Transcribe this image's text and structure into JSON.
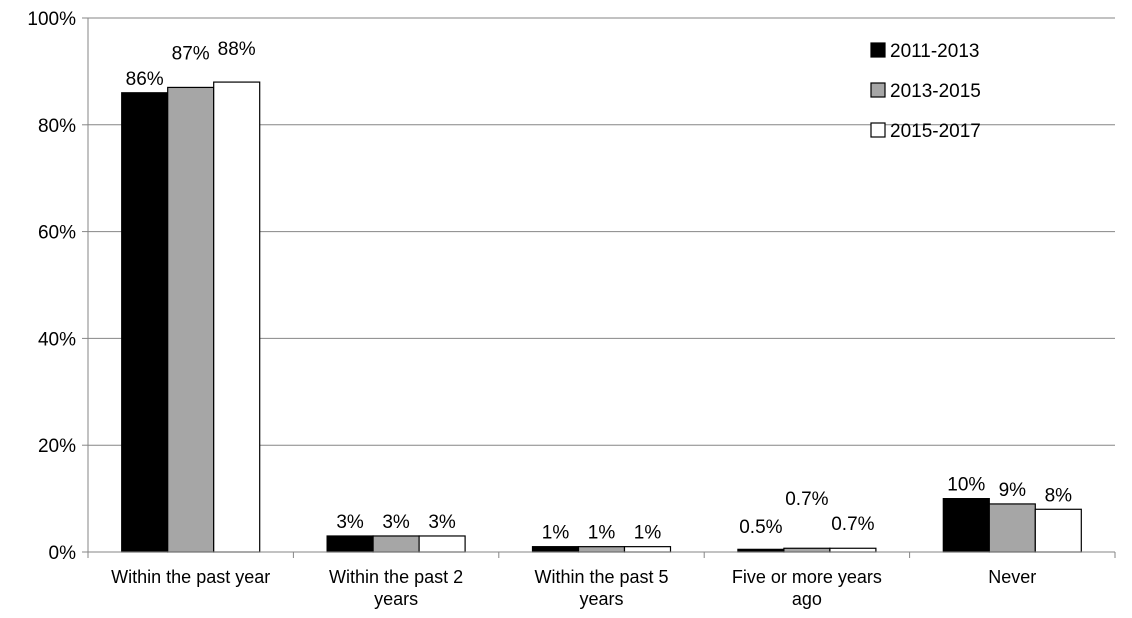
{
  "chart_data": {
    "type": "bar",
    "categories": [
      "Within the past year",
      "Within the past 2 years",
      "Within the past 5 years",
      "Five or more years ago",
      "Never"
    ],
    "category_label_lines": [
      [
        "Within the past year"
      ],
      [
        "Within the past 2",
        "years"
      ],
      [
        "Within the past 5",
        "years"
      ],
      [
        "Five or more years",
        "ago"
      ],
      [
        "Never"
      ]
    ],
    "series": [
      {
        "name": "2011-2013",
        "color": "#000000",
        "values": [
          86,
          3,
          1,
          0.5,
          10
        ],
        "labels": [
          "86%",
          "3%",
          "1%",
          "0.5%",
          "10%"
        ]
      },
      {
        "name": "2013-2015",
        "color": "#a6a6a6",
        "values": [
          87,
          3,
          1,
          0.7,
          9
        ],
        "labels": [
          "87%",
          "3%",
          "1%",
          "0.7%",
          "9%"
        ]
      },
      {
        "name": "2015-2017",
        "color": "#ffffff",
        "values": [
          88,
          3,
          1,
          0.7,
          8
        ],
        "labels": [
          "88%",
          "3%",
          "1%",
          "0.7%",
          "8%"
        ]
      }
    ],
    "ylim": [
      0,
      100
    ],
    "yticks": [
      0,
      20,
      40,
      60,
      80,
      100
    ],
    "ytick_labels": [
      "0%",
      "20%",
      "40%",
      "60%",
      "80%",
      "100%"
    ],
    "grid": true,
    "legend_position": "top-right",
    "title": "",
    "xlabel": "",
    "ylabel": ""
  }
}
